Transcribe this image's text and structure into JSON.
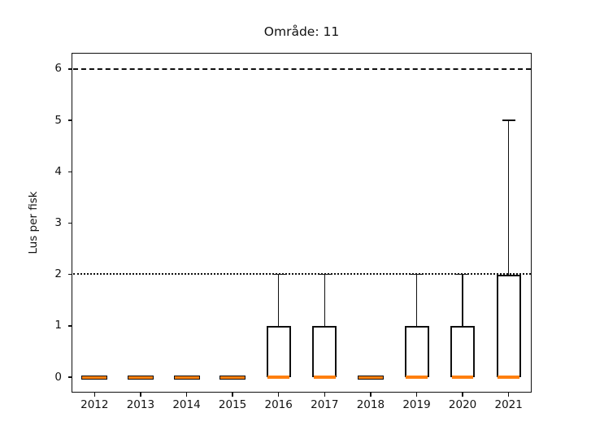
{
  "chart_data": {
    "type": "boxplot",
    "title": "Område: 11",
    "xlabel": "",
    "ylabel": "Lus per fisk",
    "categories": [
      "2012",
      "2013",
      "2014",
      "2015",
      "2016",
      "2017",
      "2018",
      "2019",
      "2020",
      "2021"
    ],
    "yticks": [
      "0",
      "1",
      "2",
      "3",
      "4",
      "5",
      "6"
    ],
    "ylim": [
      -0.3,
      6.32
    ],
    "grid": false,
    "legend": null,
    "boxes": [
      {
        "category": "2012",
        "whislo": 0,
        "q1": 0,
        "med": 0,
        "q3": 0,
        "whishi": 0
      },
      {
        "category": "2013",
        "whislo": 0,
        "q1": 0,
        "med": 0,
        "q3": 0,
        "whishi": 0
      },
      {
        "category": "2014",
        "whislo": 0,
        "q1": 0,
        "med": 0,
        "q3": 0,
        "whishi": 0
      },
      {
        "category": "2015",
        "whislo": 0,
        "q1": 0,
        "med": 0,
        "q3": 0,
        "whishi": 0
      },
      {
        "category": "2016",
        "whislo": 0,
        "q1": 0,
        "med": 0,
        "q3": 1,
        "whishi": 2
      },
      {
        "category": "2017",
        "whislo": 0,
        "q1": 0,
        "med": 0,
        "q3": 1,
        "whishi": 2
      },
      {
        "category": "2018",
        "whislo": 0,
        "q1": 0,
        "med": 0,
        "q3": 0,
        "whishi": 0
      },
      {
        "category": "2019",
        "whislo": 0,
        "q1": 0,
        "med": 0,
        "q3": 1,
        "whishi": 2
      },
      {
        "category": "2020",
        "whislo": 0,
        "q1": 0,
        "med": 0,
        "q3": 1,
        "whishi": 2
      },
      {
        "category": "2021",
        "whislo": 0,
        "q1": 0,
        "med": 0,
        "q3": 2,
        "whishi": 5
      }
    ],
    "reference_lines": [
      {
        "y": 6,
        "style": "dashed"
      },
      {
        "y": 2,
        "style": "dotted"
      }
    ],
    "colors": {
      "median": "#ff7f0e",
      "box_edge": "#0f0f0f",
      "background": "#ffffff"
    }
  }
}
